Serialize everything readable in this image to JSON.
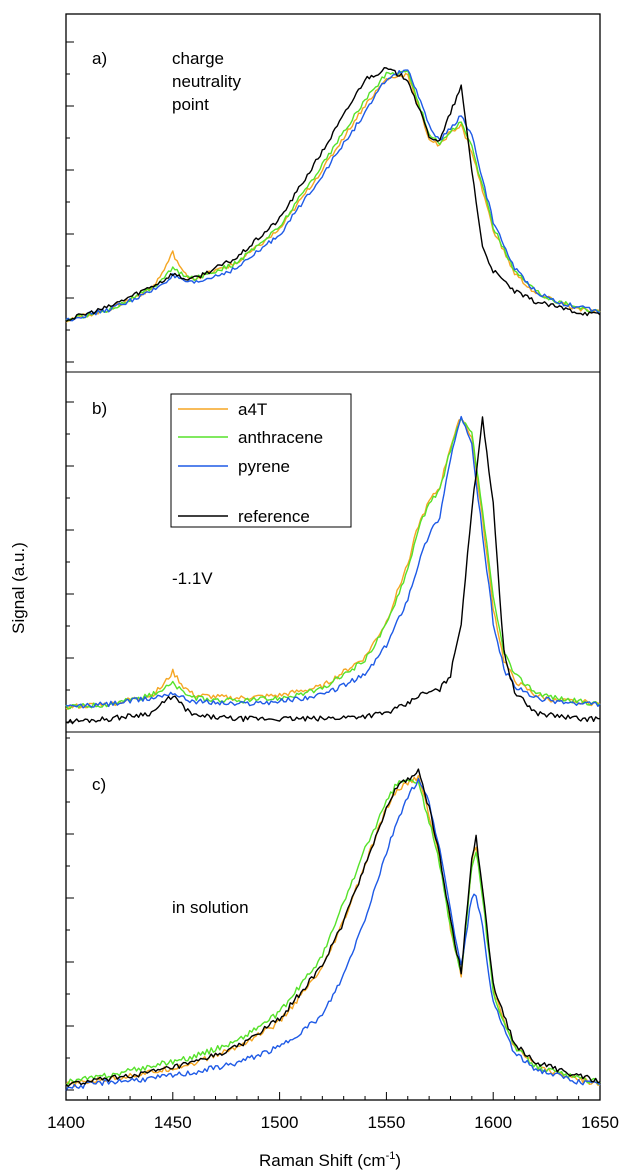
{
  "chart_data": {
    "type": "line",
    "xlabel": "Raman Shift (cm",
    "xlabel_sup": "-1",
    "xlabel_tail": ")",
    "ylabel": "Signal (a.u.)",
    "xlim": [
      1400,
      1650
    ],
    "xticks": [
      1400,
      1450,
      1500,
      1550,
      1600,
      1650
    ],
    "xtick_labels": [
      "1400",
      "1450",
      "1500",
      "1550",
      "1600",
      "1650"
    ],
    "legend": {
      "entries": [
        {
          "name": "a4T",
          "color": "#f5a623"
        },
        {
          "name": "anthracene",
          "color": "#56e22a"
        },
        {
          "name": "pyrene",
          "color": "#1e5ae6"
        },
        {
          "name": "reference",
          "color": "#000000"
        }
      ]
    },
    "panels": [
      {
        "label": "a)",
        "annotation": [
          "charge",
          "neutrality",
          "point"
        ],
        "ylim": [
          0,
          1.05
        ],
        "series": [
          {
            "name": "a4T",
            "color": "#f5a623",
            "x": [
              1400,
              1420,
              1440,
              1445,
              1450,
              1455,
              1460,
              1480,
              1500,
              1520,
              1540,
              1550,
              1560,
              1570,
              1575,
              1580,
              1585,
              1590,
              1600,
              1610,
              1620,
              1630,
              1640,
              1650
            ],
            "y": [
              0.0,
              0.04,
              0.12,
              0.18,
              0.26,
              0.18,
              0.16,
              0.22,
              0.35,
              0.58,
              0.83,
              0.93,
              0.95,
              0.7,
              0.67,
              0.73,
              0.75,
              0.65,
              0.35,
              0.18,
              0.1,
              0.07,
              0.04,
              0.03
            ]
          },
          {
            "name": "anthracene",
            "color": "#56e22a",
            "x": [
              1400,
              1420,
              1440,
              1445,
              1450,
              1455,
              1460,
              1480,
              1500,
              1520,
              1540,
              1550,
              1560,
              1570,
              1575,
              1580,
              1585,
              1590,
              1600,
              1610,
              1620,
              1630,
              1640,
              1650
            ],
            "y": [
              0.0,
              0.04,
              0.12,
              0.16,
              0.2,
              0.17,
              0.16,
              0.22,
              0.36,
              0.6,
              0.85,
              0.95,
              0.96,
              0.72,
              0.68,
              0.73,
              0.76,
              0.67,
              0.36,
              0.19,
              0.11,
              0.07,
              0.05,
              0.03
            ]
          },
          {
            "name": "pyrene",
            "color": "#1e5ae6",
            "x": [
              1400,
              1420,
              1440,
              1445,
              1450,
              1455,
              1460,
              1480,
              1500,
              1520,
              1540,
              1550,
              1560,
              1570,
              1575,
              1580,
              1585,
              1590,
              1600,
              1610,
              1620,
              1630,
              1640,
              1650
            ],
            "y": [
              0.0,
              0.04,
              0.11,
              0.14,
              0.17,
              0.15,
              0.14,
              0.2,
              0.33,
              0.56,
              0.8,
              0.93,
              0.97,
              0.75,
              0.69,
              0.74,
              0.79,
              0.71,
              0.38,
              0.2,
              0.11,
              0.07,
              0.05,
              0.03
            ]
          },
          {
            "name": "reference",
            "color": "#000000",
            "x": [
              1400,
              1420,
              1440,
              1445,
              1450,
              1455,
              1460,
              1480,
              1500,
              1520,
              1540,
              1550,
              1560,
              1570,
              1575,
              1580,
              1585,
              1590,
              1595,
              1600,
              1610,
              1620,
              1630,
              1640,
              1650
            ],
            "y": [
              0.0,
              0.05,
              0.13,
              0.15,
              0.18,
              0.16,
              0.16,
              0.24,
              0.39,
              0.65,
              0.93,
              0.97,
              0.93,
              0.71,
              0.69,
              0.8,
              0.9,
              0.58,
              0.28,
              0.19,
              0.11,
              0.07,
              0.05,
              0.03,
              0.02
            ]
          }
        ]
      },
      {
        "label": "b)",
        "annotation": [
          "-1.1V"
        ],
        "ylim": [
          0,
          1.05
        ],
        "series": [
          {
            "name": "a4T",
            "color": "#f5a623",
            "x": [
              1400,
              1420,
              1440,
              1445,
              1450,
              1455,
              1460,
              1480,
              1500,
              1520,
              1540,
              1550,
              1560,
              1565,
              1570,
              1575,
              1580,
              1585,
              1590,
              1595,
              1600,
              1605,
              1610,
              1620,
              1630,
              1640,
              1650
            ],
            "y": [
              0.01,
              0.02,
              0.05,
              0.08,
              0.13,
              0.08,
              0.05,
              0.04,
              0.05,
              0.08,
              0.18,
              0.3,
              0.5,
              0.63,
              0.71,
              0.76,
              0.9,
              1.0,
              0.93,
              0.65,
              0.35,
              0.17,
              0.1,
              0.05,
              0.03,
              0.03,
              0.02
            ]
          },
          {
            "name": "anthracene",
            "color": "#56e22a",
            "x": [
              1400,
              1420,
              1440,
              1445,
              1450,
              1455,
              1460,
              1480,
              1500,
              1520,
              1540,
              1550,
              1560,
              1565,
              1570,
              1575,
              1580,
              1585,
              1590,
              1595,
              1600,
              1605,
              1610,
              1620,
              1630,
              1640,
              1650
            ],
            "y": [
              0.01,
              0.02,
              0.05,
              0.07,
              0.09,
              0.06,
              0.04,
              0.03,
              0.04,
              0.07,
              0.17,
              0.29,
              0.48,
              0.62,
              0.7,
              0.75,
              0.89,
              0.99,
              0.94,
              0.68,
              0.38,
              0.2,
              0.12,
              0.06,
              0.04,
              0.03,
              0.02
            ]
          },
          {
            "name": "pyrene",
            "color": "#1e5ae6",
            "x": [
              1400,
              1420,
              1440,
              1445,
              1450,
              1455,
              1460,
              1480,
              1500,
              1520,
              1540,
              1550,
              1560,
              1565,
              1570,
              1575,
              1580,
              1585,
              1590,
              1595,
              1600,
              1605,
              1610,
              1620,
              1630,
              1640,
              1650
            ],
            "y": [
              0.01,
              0.02,
              0.04,
              0.05,
              0.06,
              0.04,
              0.03,
              0.02,
              0.03,
              0.05,
              0.12,
              0.22,
              0.38,
              0.5,
              0.6,
              0.66,
              0.86,
              1.0,
              0.9,
              0.6,
              0.3,
              0.14,
              0.08,
              0.04,
              0.03,
              0.02,
              0.02
            ]
          },
          {
            "name": "reference",
            "color": "#000000",
            "x": [
              1400,
              1420,
              1440,
              1445,
              1450,
              1455,
              1460,
              1480,
              1500,
              1520,
              1540,
              1550,
              1560,
              1565,
              1570,
              1575,
              1580,
              1585,
              1590,
              1595,
              1600,
              1605,
              1610,
              1620,
              1630,
              1640,
              1650
            ],
            "y": [
              -0.04,
              -0.03,
              -0.01,
              0.02,
              0.05,
              0.01,
              -0.02,
              -0.03,
              -0.03,
              -0.03,
              -0.02,
              -0.01,
              0.02,
              0.05,
              0.06,
              0.07,
              0.12,
              0.3,
              0.68,
              1.0,
              0.7,
              0.2,
              0.06,
              -0.01,
              -0.02,
              -0.03,
              -0.03
            ]
          }
        ]
      },
      {
        "label": "c)",
        "annotation": [
          "in solution"
        ],
        "ylim": [
          0,
          1.05
        ],
        "series": [
          {
            "name": "a4T",
            "color": "#f5a623",
            "x": [
              1400,
              1420,
              1440,
              1460,
              1480,
              1500,
              1520,
              1530,
              1540,
              1550,
              1555,
              1560,
              1565,
              1570,
              1575,
              1580,
              1585,
              1590,
              1592,
              1595,
              1600,
              1610,
              1620,
              1630,
              1640,
              1650
            ],
            "y": [
              0.0,
              0.02,
              0.04,
              0.07,
              0.12,
              0.2,
              0.37,
              0.52,
              0.7,
              0.88,
              0.94,
              0.96,
              0.98,
              0.86,
              0.72,
              0.5,
              0.35,
              0.71,
              0.76,
              0.62,
              0.3,
              0.12,
              0.06,
              0.04,
              0.02,
              0.0
            ]
          },
          {
            "name": "anthracene",
            "color": "#56e22a",
            "x": [
              1400,
              1420,
              1440,
              1460,
              1480,
              1500,
              1520,
              1530,
              1540,
              1550,
              1555,
              1560,
              1565,
              1570,
              1575,
              1580,
              1585,
              1590,
              1592,
              1595,
              1600,
              1610,
              1620,
              1630,
              1640,
              1650
            ],
            "y": [
              0.01,
              0.03,
              0.06,
              0.09,
              0.14,
              0.23,
              0.41,
              0.58,
              0.75,
              0.9,
              0.96,
              0.97,
              0.96,
              0.84,
              0.7,
              0.5,
              0.35,
              0.7,
              0.75,
              0.6,
              0.29,
              0.12,
              0.06,
              0.04,
              0.02,
              0.01
            ]
          },
          {
            "name": "pyrene",
            "color": "#1e5ae6",
            "x": [
              1400,
              1420,
              1440,
              1460,
              1480,
              1500,
              1520,
              1530,
              1540,
              1550,
              1555,
              1560,
              1565,
              1570,
              1575,
              1580,
              1585,
              1590,
              1592,
              1595,
              1600,
              1610,
              1620,
              1630,
              1640,
              1650
            ],
            "y": [
              -0.01,
              0.01,
              0.02,
              0.04,
              0.07,
              0.12,
              0.22,
              0.35,
              0.53,
              0.74,
              0.84,
              0.92,
              0.97,
              0.9,
              0.75,
              0.55,
              0.38,
              0.6,
              0.61,
              0.5,
              0.26,
              0.1,
              0.05,
              0.03,
              0.01,
              0.0
            ]
          },
          {
            "name": "reference",
            "color": "#000000",
            "x": [
              1400,
              1420,
              1440,
              1460,
              1480,
              1500,
              1520,
              1530,
              1540,
              1550,
              1555,
              1560,
              1565,
              1570,
              1575,
              1580,
              1585,
              1590,
              1592,
              1595,
              1600,
              1610,
              1620,
              1630,
              1640,
              1650
            ],
            "y": [
              0.0,
              0.02,
              0.04,
              0.07,
              0.12,
              0.21,
              0.38,
              0.52,
              0.7,
              0.88,
              0.95,
              0.97,
              1.0,
              0.88,
              0.73,
              0.52,
              0.36,
              0.72,
              0.79,
              0.63,
              0.32,
              0.13,
              0.07,
              0.05,
              0.03,
              0.01
            ]
          }
        ]
      }
    ]
  }
}
